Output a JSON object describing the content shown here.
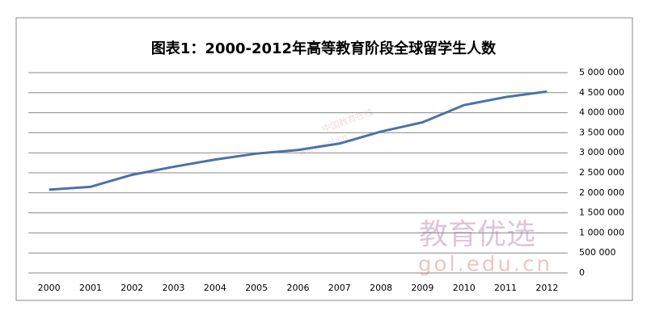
{
  "chart_data": {
    "type": "line",
    "title": "图表1：2000-2012年高等教育阶段全球留学生人数",
    "categories": [
      "2000",
      "2001",
      "2002",
      "2003",
      "2004",
      "2005",
      "2006",
      "2007",
      "2008",
      "2009",
      "2010",
      "2011",
      "2012"
    ],
    "series": [
      {
        "color": "#4a72a8",
        "values": [
          2080000,
          2150000,
          2450000,
          2650000,
          2830000,
          2980000,
          3070000,
          3230000,
          3530000,
          3760000,
          4190000,
          4390000,
          4530000
        ]
      }
    ],
    "ylim": [
      0,
      5000000
    ],
    "yticks": [
      0,
      {
        "value": 500000,
        "label": "500 000"
      },
      {
        "value": 1000000,
        "label": "1 000 000"
      },
      {
        "value": 1500000,
        "label": "1 500 000"
      },
      {
        "value": 2000000,
        "label": "2 000 000"
      },
      {
        "value": 2500000,
        "label": "2 500 000"
      },
      {
        "value": 3000000,
        "label": "3 000 000"
      },
      {
        "value": 3500000,
        "label": "3 500 000"
      },
      {
        "value": 4000000,
        "label": "4 000 000"
      },
      {
        "value": 4500000,
        "label": "4 500 000"
      },
      {
        "value": 5000000,
        "label": "5 000 000"
      }
    ],
    "y_axis_side": "right",
    "grid": true,
    "watermarks": [
      "中国教育在线",
      "www.eol.cn",
      "教育优选",
      "gol.edu.cn"
    ]
  }
}
